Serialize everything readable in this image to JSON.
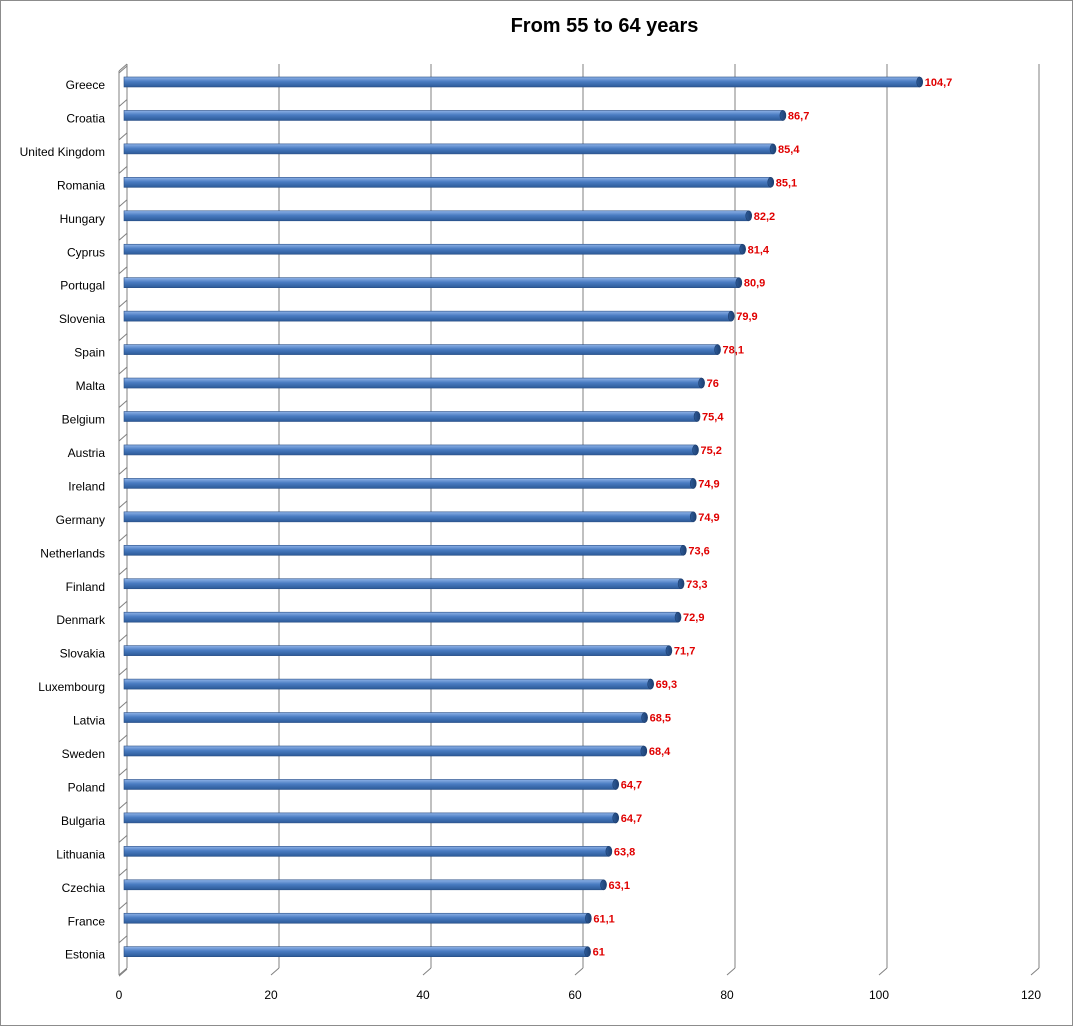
{
  "chart_data": {
    "type": "bar",
    "orientation": "horizontal",
    "title": "From 55 to 64 years",
    "xlabel": "",
    "ylabel": "",
    "xlim": [
      0,
      120
    ],
    "x_ticks": [
      "0",
      "20",
      "40",
      "60",
      "80",
      "100",
      "120"
    ],
    "grid": true,
    "legend": "none",
    "bar_color": "#4a7cc2",
    "value_label_color": "#e00000",
    "categories": [
      "Greece",
      "Croatia",
      "United Kingdom",
      "Romania",
      "Hungary",
      "Cyprus",
      "Portugal",
      "Slovenia",
      "Spain",
      "Malta",
      "Belgium",
      "Austria",
      "Ireland",
      "Germany",
      "Netherlands",
      "Finland",
      "Denmark",
      "Slovakia",
      "Luxembourg",
      "Latvia",
      "Sweden",
      "Poland",
      "Bulgaria",
      "Lithuania",
      "Czechia",
      "France",
      "Estonia"
    ],
    "values": [
      104.7,
      86.7,
      85.4,
      85.1,
      82.2,
      81.4,
      80.9,
      79.9,
      78.1,
      76,
      75.4,
      75.2,
      74.9,
      74.9,
      73.6,
      73.3,
      72.9,
      71.7,
      69.3,
      68.5,
      68.4,
      64.7,
      64.7,
      63.8,
      63.1,
      61.1,
      61
    ],
    "value_labels": [
      "104,7",
      "86,7",
      "85,4",
      "85,1",
      "82,2",
      "81,4",
      "80,9",
      "79,9",
      "78,1",
      "76",
      "75,4",
      "75,2",
      "74,9",
      "74,9",
      "73,6",
      "73,3",
      "72,9",
      "71,7",
      "69,3",
      "68,5",
      "68,4",
      "64,7",
      "64,7",
      "63,8",
      "63,1",
      "61,1",
      "61"
    ]
  }
}
